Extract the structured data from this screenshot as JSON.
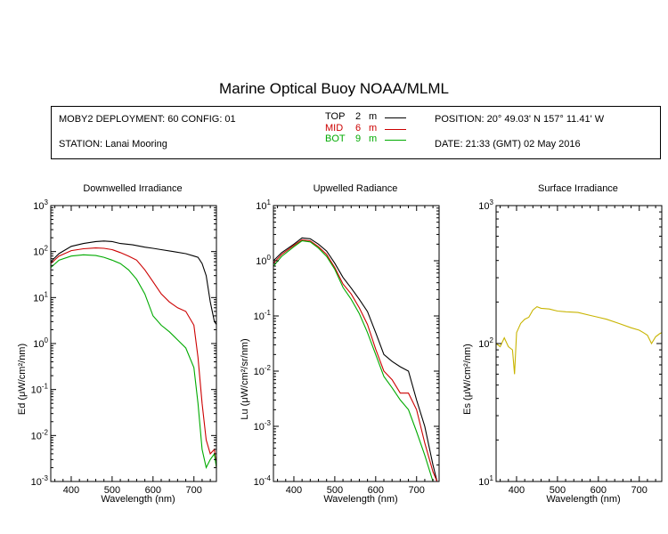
{
  "title": "Marine Optical Buoy NOAA/MLML",
  "info": {
    "deployment": "MOBY2 DEPLOYMENT: 60 CONFIG: 01",
    "station": "STATION: Lanai Mooring",
    "position": "POSITION: 20° 49.03' N   157° 11.41' W",
    "date": "DATE: 21:33 (GMT) 02 May 2016",
    "legend": [
      {
        "name": "TOP",
        "depth": "2",
        "unit": "m",
        "color": "#000000"
      },
      {
        "name": "MID",
        "depth": "6",
        "unit": "m",
        "color": "#cc0000"
      },
      {
        "name": "BOT",
        "depth": "9",
        "unit": "m",
        "color": "#00aa00"
      }
    ]
  },
  "chart_data": [
    {
      "type": "line",
      "title": "Downwelled Irradiance",
      "xlabel": "Wavelength (nm)",
      "ylabel": "Ed  (μW/cm²/nm)",
      "yscale": "log",
      "xlim": [
        350,
        755
      ],
      "ylim": [
        0.001,
        1000
      ],
      "xticks": [
        400,
        500,
        600,
        700
      ],
      "yticks": [
        {
          "base": "10",
          "exp": "-3"
        },
        {
          "base": "10",
          "exp": "-2"
        },
        {
          "base": "10",
          "exp": "-1"
        },
        {
          "base": "10",
          "exp": "0"
        },
        {
          "base": "10",
          "exp": "1"
        },
        {
          "base": "10",
          "exp": "2"
        },
        {
          "base": "10",
          "exp": "3"
        }
      ],
      "series": [
        {
          "name": "TOP",
          "color": "#000000",
          "x": [
            350,
            370,
            400,
            430,
            460,
            480,
            500,
            520,
            550,
            580,
            600,
            620,
            650,
            680,
            700,
            710,
            720,
            730,
            740,
            750,
            755
          ],
          "y": [
            60,
            90,
            130,
            150,
            165,
            170,
            165,
            150,
            140,
            125,
            118,
            110,
            100,
            90,
            80,
            75,
            55,
            30,
            8,
            3,
            2.6
          ]
        },
        {
          "name": "MID",
          "color": "#cc0000",
          "x": [
            350,
            370,
            400,
            430,
            460,
            480,
            500,
            520,
            540,
            560,
            580,
            600,
            620,
            640,
            660,
            680,
            700,
            710,
            720,
            730,
            740,
            750,
            755
          ],
          "y": [
            55,
            80,
            105,
            115,
            120,
            118,
            110,
            95,
            80,
            65,
            40,
            22,
            12,
            8,
            6,
            5,
            2.5,
            0.5,
            0.05,
            0.008,
            0.004,
            0.005,
            0.002
          ]
        },
        {
          "name": "BOT",
          "color": "#00aa00",
          "x": [
            350,
            370,
            400,
            430,
            460,
            480,
            500,
            520,
            540,
            560,
            580,
            600,
            620,
            640,
            660,
            680,
            700,
            710,
            720,
            730,
            740,
            750,
            755
          ],
          "y": [
            45,
            65,
            80,
            85,
            82,
            75,
            65,
            55,
            40,
            25,
            12,
            4,
            2.5,
            1.8,
            1.2,
            0.8,
            0.3,
            0.05,
            0.005,
            0.002,
            0.003,
            0.004,
            0.002
          ]
        }
      ]
    },
    {
      "type": "line",
      "title": "Upwelled Radiance",
      "xlabel": "Wavelength (nm)",
      "ylabel": "Lu  (μW/cm²/sr/nm)",
      "yscale": "log",
      "xlim": [
        350,
        755
      ],
      "ylim": [
        0.0001,
        10
      ],
      "xticks": [
        400,
        500,
        600,
        700
      ],
      "yticks": [
        {
          "base": "10",
          "exp": "-4"
        },
        {
          "base": "10",
          "exp": "-3"
        },
        {
          "base": "10",
          "exp": "-2"
        },
        {
          "base": "10",
          "exp": "-1"
        },
        {
          "base": "10",
          "exp": "0"
        },
        {
          "base": "10",
          "exp": "1"
        }
      ],
      "series": [
        {
          "name": "TOP",
          "color": "#000000",
          "x": [
            350,
            370,
            400,
            420,
            440,
            460,
            480,
            500,
            520,
            540,
            560,
            580,
            600,
            620,
            640,
            660,
            680,
            700,
            720,
            740,
            750,
            755
          ],
          "y": [
            1.0,
            1.4,
            2.0,
            2.6,
            2.5,
            2.0,
            1.5,
            0.9,
            0.5,
            0.32,
            0.2,
            0.12,
            0.05,
            0.02,
            0.015,
            0.012,
            0.01,
            0.003,
            0.001,
            0.0002,
            0.0001,
            0.0001
          ]
        },
        {
          "name": "MID",
          "color": "#cc0000",
          "x": [
            350,
            370,
            400,
            420,
            440,
            460,
            480,
            500,
            520,
            540,
            560,
            580,
            600,
            620,
            640,
            660,
            680,
            700,
            720,
            740,
            750,
            755
          ],
          "y": [
            0.9,
            1.3,
            1.9,
            2.4,
            2.3,
            1.8,
            1.3,
            0.75,
            0.38,
            0.25,
            0.14,
            0.07,
            0.025,
            0.01,
            0.007,
            0.004,
            0.004,
            0.002,
            0.0005,
            0.00015,
            0.0001,
            0.0001
          ]
        },
        {
          "name": "BOT",
          "color": "#00aa00",
          "x": [
            350,
            370,
            400,
            420,
            440,
            460,
            480,
            500,
            520,
            540,
            560,
            580,
            600,
            620,
            640,
            660,
            680,
            700,
            720,
            740,
            750,
            755
          ],
          "y": [
            0.8,
            1.2,
            1.8,
            2.3,
            2.2,
            1.7,
            1.2,
            0.7,
            0.33,
            0.2,
            0.11,
            0.05,
            0.02,
            0.008,
            0.005,
            0.003,
            0.002,
            0.0008,
            0.0003,
            0.0001,
            0.0001,
            0.0001
          ]
        }
      ]
    },
    {
      "type": "line",
      "title": "Surface Irradiance",
      "xlabel": "Wavelength (nm)",
      "ylabel": "Es  (μW/cm²/nm)",
      "yscale": "log",
      "xlim": [
        350,
        755
      ],
      "ylim": [
        10,
        1000
      ],
      "xticks": [
        400,
        500,
        600,
        700
      ],
      "yticks": [
        {
          "base": "10",
          "exp": "1"
        },
        {
          "base": "10",
          "exp": "2"
        },
        {
          "base": "10",
          "exp": "3"
        }
      ],
      "series": [
        {
          "name": "Es",
          "color": "#c8b400",
          "x": [
            350,
            360,
            370,
            380,
            390,
            395,
            400,
            410,
            420,
            430,
            440,
            450,
            460,
            480,
            500,
            520,
            550,
            580,
            600,
            620,
            650,
            680,
            700,
            710,
            720,
            730,
            740,
            750,
            755
          ],
          "y": [
            100,
            95,
            110,
            95,
            90,
            60,
            120,
            140,
            150,
            155,
            175,
            185,
            180,
            178,
            172,
            170,
            168,
            160,
            155,
            150,
            140,
            130,
            125,
            120,
            115,
            100,
            112,
            118,
            120
          ]
        }
      ]
    }
  ]
}
